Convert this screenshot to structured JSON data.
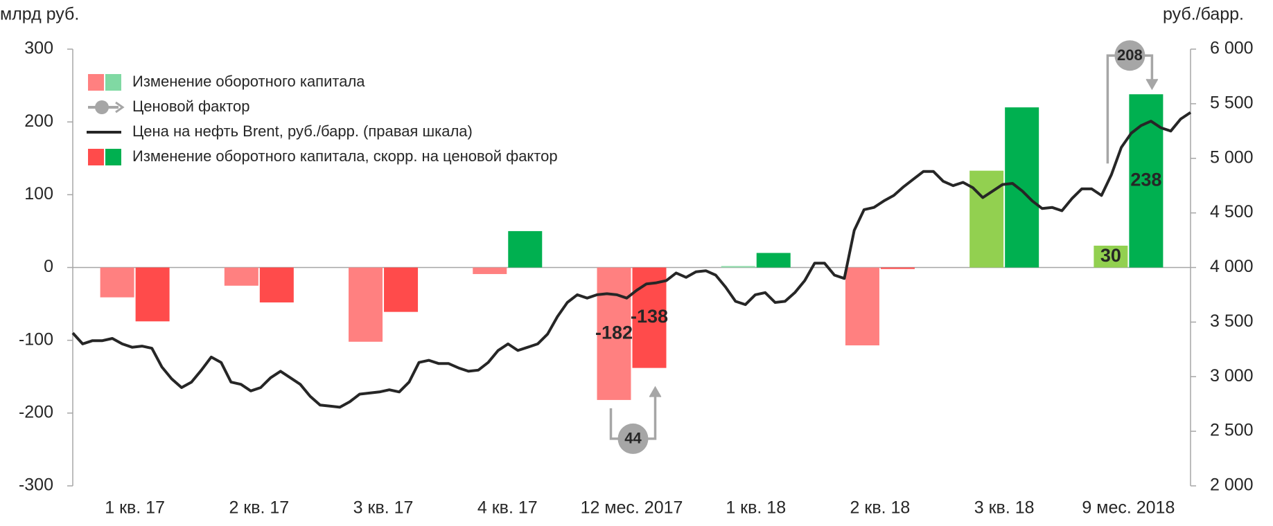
{
  "chart_data": {
    "type": "bar",
    "y_axis_label": "млрд руб.",
    "y2_axis_label": "руб./барр.",
    "categories": [
      "1 кв. 17",
      "2 кв. 17",
      "3 кв. 17",
      "4 кв. 17",
      "12 мес. 2017",
      "1 кв. 18",
      "2 кв. 18",
      "3 кв. 18",
      "9 мес. 2018"
    ],
    "series": [
      {
        "name": "Изменение оборотного капитала",
        "legend_colors": [
          "#ff8080",
          "#80d9a3"
        ],
        "colors": [
          "#ff8080",
          "#ff8080",
          "#ff8080",
          "#ff8080",
          "#ff8080",
          "#8fdcaa",
          "#ff8080",
          "#92d050",
          "#92d050"
        ],
        "values": [
          -41,
          -25,
          -102,
          -9,
          -182,
          2,
          -107,
          133,
          30
        ],
        "value_labels": [
          null,
          null,
          null,
          null,
          "-182",
          null,
          null,
          null,
          "30"
        ]
      },
      {
        "name": "Изменение оборотного капитала, скорр. на ценовой фактор",
        "legend_colors": [
          "#ff4b4b",
          "#00b050"
        ],
        "colors": [
          "#ff4b4b",
          "#ff4b4b",
          "#ff4b4b",
          "#00b050",
          "#ff4b4b",
          "#00b050",
          "#ff4b4b",
          "#00b050",
          "#00b050"
        ],
        "values": [
          -74,
          -48,
          -61,
          50,
          -138,
          20,
          -2,
          220,
          238
        ],
        "value_labels": [
          null,
          null,
          null,
          null,
          "-138",
          null,
          null,
          null,
          "238"
        ]
      }
    ],
    "price_factor": {
      "name": "Ценовой фактор",
      "color": "#a6a6a6",
      "values": [
        null,
        null,
        null,
        null,
        44,
        null,
        null,
        null,
        208
      ]
    },
    "line": {
      "name": "Цена на нефть Brent, руб./барр. (правая шкала)",
      "color": "#262626",
      "axis": "y2",
      "values": [
        3400,
        3300,
        3330,
        3330,
        3350,
        3300,
        3270,
        3280,
        3260,
        3090,
        2980,
        2900,
        2950,
        3060,
        3180,
        3130,
        2950,
        2930,
        2870,
        2900,
        2990,
        3050,
        2990,
        2930,
        2820,
        2740,
        2730,
        2720,
        2770,
        2840,
        2850,
        2860,
        2880,
        2860,
        2950,
        3130,
        3150,
        3120,
        3120,
        3080,
        3050,
        3060,
        3130,
        3240,
        3300,
        3240,
        3270,
        3300,
        3390,
        3550,
        3680,
        3750,
        3720,
        3750,
        3760,
        3750,
        3720,
        3790,
        3850,
        3860,
        3880,
        3950,
        3910,
        3960,
        3970,
        3930,
        3820,
        3690,
        3660,
        3750,
        3770,
        3680,
        3690,
        3770,
        3880,
        4040,
        4040,
        3930,
        3900,
        4340,
        4530,
        4550,
        4610,
        4660,
        4740,
        4810,
        4880,
        4880,
        4790,
        4750,
        4780,
        4730,
        4640,
        4700,
        4760,
        4770,
        4700,
        4610,
        4540,
        4550,
        4520,
        4630,
        4720,
        4720,
        4660,
        4850,
        5100,
        5230,
        5300,
        5340,
        5280,
        5250,
        5360,
        5420
      ]
    },
    "ylim": [
      -300,
      300
    ],
    "yticks": [
      -300,
      -200,
      -100,
      0,
      100,
      200,
      300
    ],
    "y2lim": [
      2000,
      6000
    ],
    "y2ticks": [
      {
        "value": 2000,
        "label": "2 000"
      },
      {
        "value": 2500,
        "label": "2 500"
      },
      {
        "value": 3000,
        "label": "3 000"
      },
      {
        "value": 3500,
        "label": "3 500"
      },
      {
        "value": 4000,
        "label": "4 000"
      },
      {
        "value": 4500,
        "label": "4 500"
      },
      {
        "value": 5000,
        "label": "5 000"
      },
      {
        "value": 5500,
        "label": "5 500"
      },
      {
        "value": 6000,
        "label": "6 000"
      }
    ],
    "grid": false
  }
}
